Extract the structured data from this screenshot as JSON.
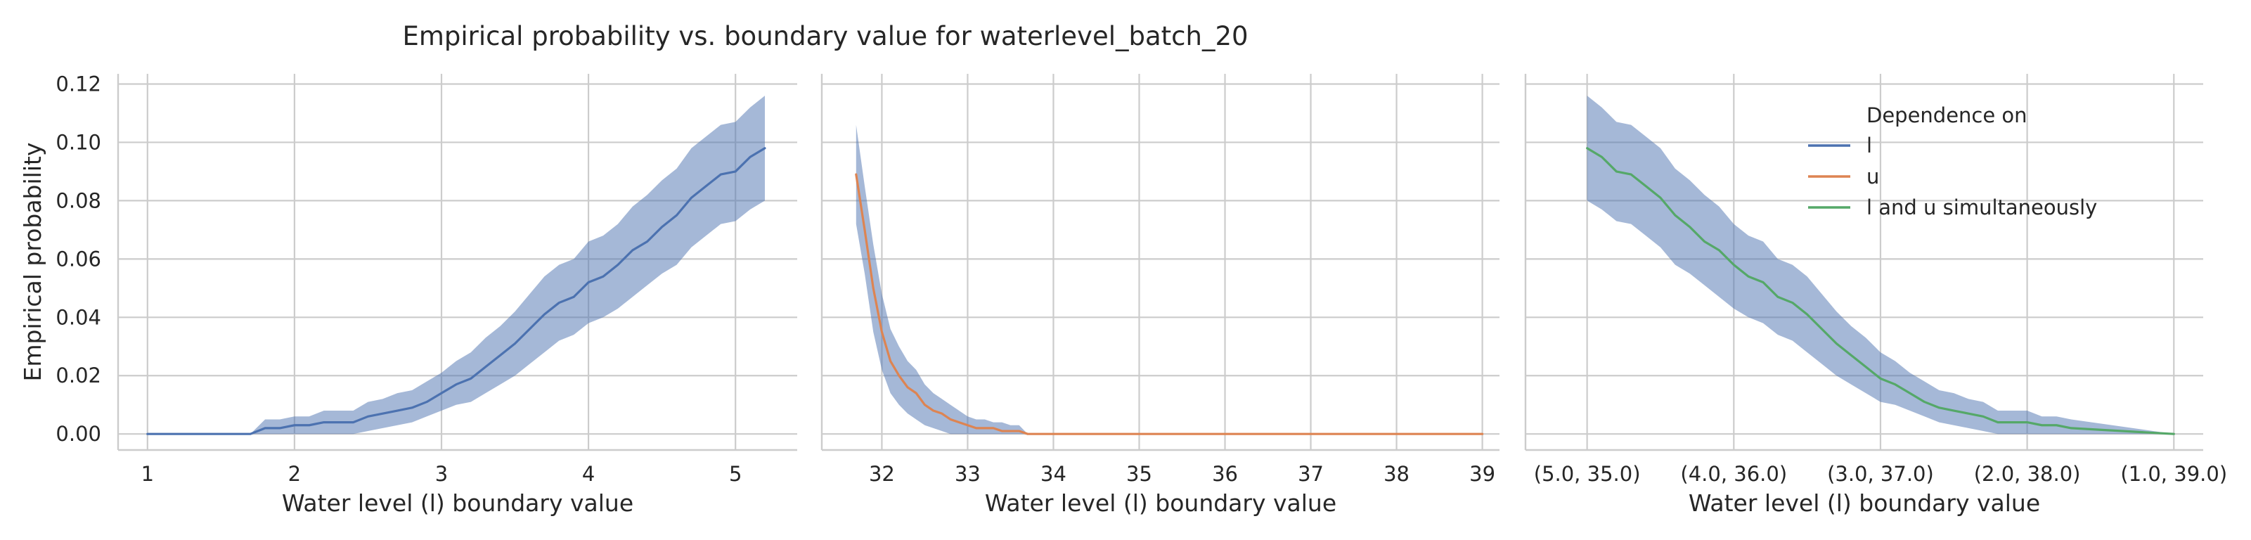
{
  "title": "Empirical probability vs. boundary value for waterlevel_batch_20",
  "colors": {
    "l": "#4c72b0",
    "u": "#dd8452",
    "lu": "#55a868",
    "band": "#4c72b0"
  },
  "legend": {
    "title": "Dependence on",
    "entries": [
      {
        "label": "l",
        "color": "#4c72b0"
      },
      {
        "label": "u",
        "color": "#dd8452"
      },
      {
        "label": "l and u simultaneously",
        "color": "#55a868"
      }
    ]
  },
  "chart_data": [
    {
      "type": "line",
      "xlabel": "Water level (l) boundary value",
      "ylabel": "Empirical probability",
      "xlim": [
        0.8,
        5.42
      ],
      "ylim": [
        -0.0055,
        0.1235
      ],
      "xticks": [
        1,
        2,
        3,
        4,
        5
      ],
      "xtick_labels": [
        "1",
        "2",
        "3",
        "4",
        "5"
      ],
      "yticks": [
        0.0,
        0.02,
        0.04,
        0.06,
        0.08,
        0.1,
        0.12
      ],
      "ytick_labels": [
        "0.00",
        "0.02",
        "0.04",
        "0.06",
        "0.08",
        "0.10",
        "0.12"
      ],
      "grid": true,
      "series": [
        {
          "name": "l",
          "color_key": "l",
          "x": [
            1.0,
            1.7,
            1.8,
            1.9,
            2.0,
            2.1,
            2.2,
            2.3,
            2.4,
            2.5,
            2.6,
            2.7,
            2.8,
            2.9,
            3.0,
            3.1,
            3.2,
            3.3,
            3.4,
            3.5,
            3.6,
            3.7,
            3.8,
            3.9,
            4.0,
            4.1,
            4.2,
            4.3,
            4.4,
            4.5,
            4.6,
            4.7,
            4.8,
            4.9,
            5.0,
            5.1,
            5.2
          ],
          "values": [
            0.0,
            0.0,
            0.002,
            0.002,
            0.003,
            0.003,
            0.004,
            0.004,
            0.004,
            0.006,
            0.007,
            0.008,
            0.009,
            0.011,
            0.014,
            0.017,
            0.019,
            0.023,
            0.027,
            0.031,
            0.036,
            0.041,
            0.045,
            0.047,
            0.052,
            0.054,
            0.058,
            0.063,
            0.066,
            0.071,
            0.075,
            0.081,
            0.085,
            0.089,
            0.09,
            0.095,
            0.098
          ],
          "ci_lower": [
            0.0,
            0.0,
            0.0,
            0.0,
            0.0,
            0.0,
            0.0,
            0.0,
            0.0,
            0.001,
            0.002,
            0.003,
            0.004,
            0.006,
            0.008,
            0.01,
            0.011,
            0.014,
            0.017,
            0.02,
            0.024,
            0.028,
            0.032,
            0.034,
            0.038,
            0.04,
            0.043,
            0.047,
            0.051,
            0.055,
            0.058,
            0.064,
            0.068,
            0.072,
            0.073,
            0.077,
            0.08
          ],
          "ci_upper": [
            0.0,
            0.0,
            0.005,
            0.005,
            0.006,
            0.006,
            0.008,
            0.008,
            0.008,
            0.011,
            0.012,
            0.014,
            0.015,
            0.018,
            0.021,
            0.025,
            0.028,
            0.033,
            0.037,
            0.042,
            0.048,
            0.054,
            0.058,
            0.06,
            0.066,
            0.068,
            0.072,
            0.078,
            0.082,
            0.087,
            0.091,
            0.098,
            0.102,
            0.106,
            0.107,
            0.112,
            0.116
          ]
        }
      ]
    },
    {
      "type": "line",
      "xlabel": "Water level (l) boundary value",
      "xlim": [
        31.3,
        39.2
      ],
      "ylim": [
        -0.0055,
        0.1235
      ],
      "xticks": [
        32,
        33,
        34,
        35,
        36,
        37,
        38,
        39
      ],
      "xtick_labels": [
        "32",
        "33",
        "34",
        "35",
        "36",
        "37",
        "38",
        "39"
      ],
      "yticks": [
        0.0,
        0.02,
        0.04,
        0.06,
        0.08,
        0.1,
        0.12
      ],
      "grid": true,
      "series": [
        {
          "name": "u",
          "color_key": "u",
          "x": [
            31.7,
            31.8,
            31.9,
            32.0,
            32.1,
            32.2,
            32.3,
            32.4,
            32.5,
            32.6,
            32.7,
            32.8,
            32.9,
            33.0,
            33.1,
            33.2,
            33.3,
            33.4,
            33.5,
            33.6,
            33.7,
            39.0
          ],
          "values": [
            0.089,
            0.07,
            0.05,
            0.035,
            0.025,
            0.02,
            0.016,
            0.014,
            0.01,
            0.008,
            0.007,
            0.005,
            0.004,
            0.003,
            0.002,
            0.002,
            0.002,
            0.001,
            0.001,
            0.001,
            0.0,
            0.0
          ],
          "ci_lower": [
            0.072,
            0.055,
            0.035,
            0.022,
            0.014,
            0.01,
            0.007,
            0.005,
            0.003,
            0.002,
            0.001,
            0.0,
            0.0,
            0.0,
            0.0,
            0.0,
            0.0,
            0.0,
            0.0,
            0.0,
            0.0,
            0.0
          ],
          "ci_upper": [
            0.106,
            0.085,
            0.065,
            0.048,
            0.036,
            0.03,
            0.025,
            0.022,
            0.017,
            0.014,
            0.012,
            0.01,
            0.008,
            0.006,
            0.005,
            0.005,
            0.004,
            0.004,
            0.003,
            0.003,
            0.0,
            0.0
          ]
        }
      ]
    },
    {
      "type": "line",
      "xlabel": "Water level (l) boundary value",
      "xlim": [
        -0.42,
        4.2
      ],
      "ylim": [
        -0.0055,
        0.1235
      ],
      "xticks": [
        0,
        1,
        2,
        3,
        4
      ],
      "xtick_labels": [
        "(5.0, 35.0)",
        "(4.0, 36.0)",
        "(3.0, 37.0)",
        "(2.0, 38.0)",
        "(1.0, 39.0)"
      ],
      "yticks": [
        0.0,
        0.02,
        0.04,
        0.06,
        0.08,
        0.1,
        0.12
      ],
      "grid": true,
      "series": [
        {
          "name": "l and u simultaneously",
          "color_key": "lu",
          "x": [
            0.0,
            0.1,
            0.2,
            0.3,
            0.4,
            0.5,
            0.6,
            0.7,
            0.8,
            0.9,
            1.0,
            1.1,
            1.2,
            1.3,
            1.4,
            1.5,
            1.6,
            1.7,
            1.8,
            1.9,
            2.0,
            2.1,
            2.2,
            2.3,
            2.4,
            2.5,
            2.6,
            2.7,
            2.8,
            2.9,
            3.0,
            3.1,
            3.2,
            3.3,
            4.0
          ],
          "values": [
            0.098,
            0.095,
            0.09,
            0.089,
            0.085,
            0.081,
            0.075,
            0.071,
            0.066,
            0.063,
            0.058,
            0.054,
            0.052,
            0.047,
            0.045,
            0.041,
            0.036,
            0.031,
            0.027,
            0.023,
            0.019,
            0.017,
            0.014,
            0.011,
            0.009,
            0.008,
            0.007,
            0.006,
            0.004,
            0.004,
            0.004,
            0.003,
            0.003,
            0.002,
            0.0
          ],
          "ci_lower": [
            0.08,
            0.077,
            0.073,
            0.072,
            0.068,
            0.064,
            0.058,
            0.055,
            0.051,
            0.047,
            0.043,
            0.04,
            0.038,
            0.034,
            0.032,
            0.028,
            0.024,
            0.02,
            0.017,
            0.014,
            0.011,
            0.01,
            0.008,
            0.006,
            0.004,
            0.003,
            0.002,
            0.001,
            0.0,
            0.0,
            0.0,
            0.0,
            0.0,
            0.0,
            0.0
          ],
          "ci_upper": [
            0.116,
            0.112,
            0.107,
            0.106,
            0.102,
            0.098,
            0.091,
            0.087,
            0.082,
            0.078,
            0.072,
            0.068,
            0.066,
            0.06,
            0.058,
            0.054,
            0.048,
            0.042,
            0.037,
            0.033,
            0.028,
            0.025,
            0.021,
            0.018,
            0.015,
            0.014,
            0.012,
            0.011,
            0.008,
            0.008,
            0.008,
            0.006,
            0.006,
            0.005,
            0.0
          ]
        }
      ]
    }
  ]
}
